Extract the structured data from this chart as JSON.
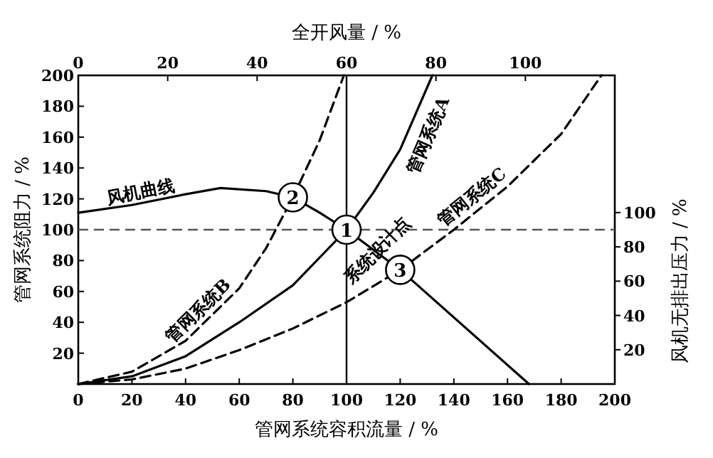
{
  "chart_data": {
    "type": "line",
    "xlabel": "管网系统容积流量 / %",
    "x2label": "全开风量 / %",
    "ylabel": "管网系统阻力 / %",
    "y2label": "风机无排出压力 / %",
    "xlim": [
      0,
      200
    ],
    "xticks": [
      0,
      20,
      40,
      60,
      80,
      100,
      120,
      140,
      160,
      180,
      200
    ],
    "x2lim": [
      0,
      120
    ],
    "x2ticks": [
      0,
      20,
      40,
      60,
      80,
      100
    ],
    "ylim": [
      0,
      200
    ],
    "yticks": [
      20,
      40,
      60,
      80,
      100,
      120,
      140,
      160,
      180,
      200
    ],
    "y2lim": [
      0,
      180
    ],
    "y2ticks": [
      20,
      40,
      60,
      80,
      100
    ],
    "marker": "none",
    "series": [
      {
        "name": "风机曲线",
        "color": "#000000",
        "line_style": "solid",
        "x": [
          0,
          20,
          40,
          53,
          70,
          80,
          90,
          100,
          120,
          168
        ],
        "values": [
          111,
          116,
          123,
          127,
          125,
          121,
          111,
          100,
          74,
          0
        ]
      },
      {
        "name": "管网系统A",
        "color": "#000000",
        "line_style": "solid",
        "x": [
          0,
          20,
          40,
          60,
          80,
          100,
          110,
          120,
          132
        ],
        "values": [
          0,
          5,
          18,
          40,
          64,
          100,
          124,
          152,
          200
        ]
      },
      {
        "name": "管网系统B",
        "color": "#000000",
        "line_style": "dashed",
        "x": [
          0,
          20,
          40,
          60,
          70,
          80,
          90,
          99
        ],
        "values": [
          0,
          8,
          28,
          62,
          88,
          121,
          158,
          200
        ]
      },
      {
        "name": "管网系统C",
        "color": "#000000",
        "line_style": "dashed",
        "x": [
          0,
          20,
          40,
          60,
          80,
          100,
          120,
          140,
          160,
          180,
          195
        ],
        "values": [
          0,
          3,
          10,
          22,
          36,
          53,
          74,
          100,
          128,
          162,
          200
        ]
      }
    ],
    "ref_lines": [
      {
        "axis": "y",
        "value": 100,
        "line_style": "dashed",
        "color": "#555555"
      },
      {
        "axis": "x",
        "value": 100,
        "line_style": "solid",
        "color": "#000000"
      }
    ],
    "annotations": [
      {
        "text": "1",
        "x": 100,
        "y": 100
      },
      {
        "text": "2",
        "x": 80,
        "y": 121
      },
      {
        "text": "3",
        "x": 120,
        "y": 74
      },
      {
        "text": "系统设计点",
        "x": 113,
        "y": 84
      }
    ]
  }
}
